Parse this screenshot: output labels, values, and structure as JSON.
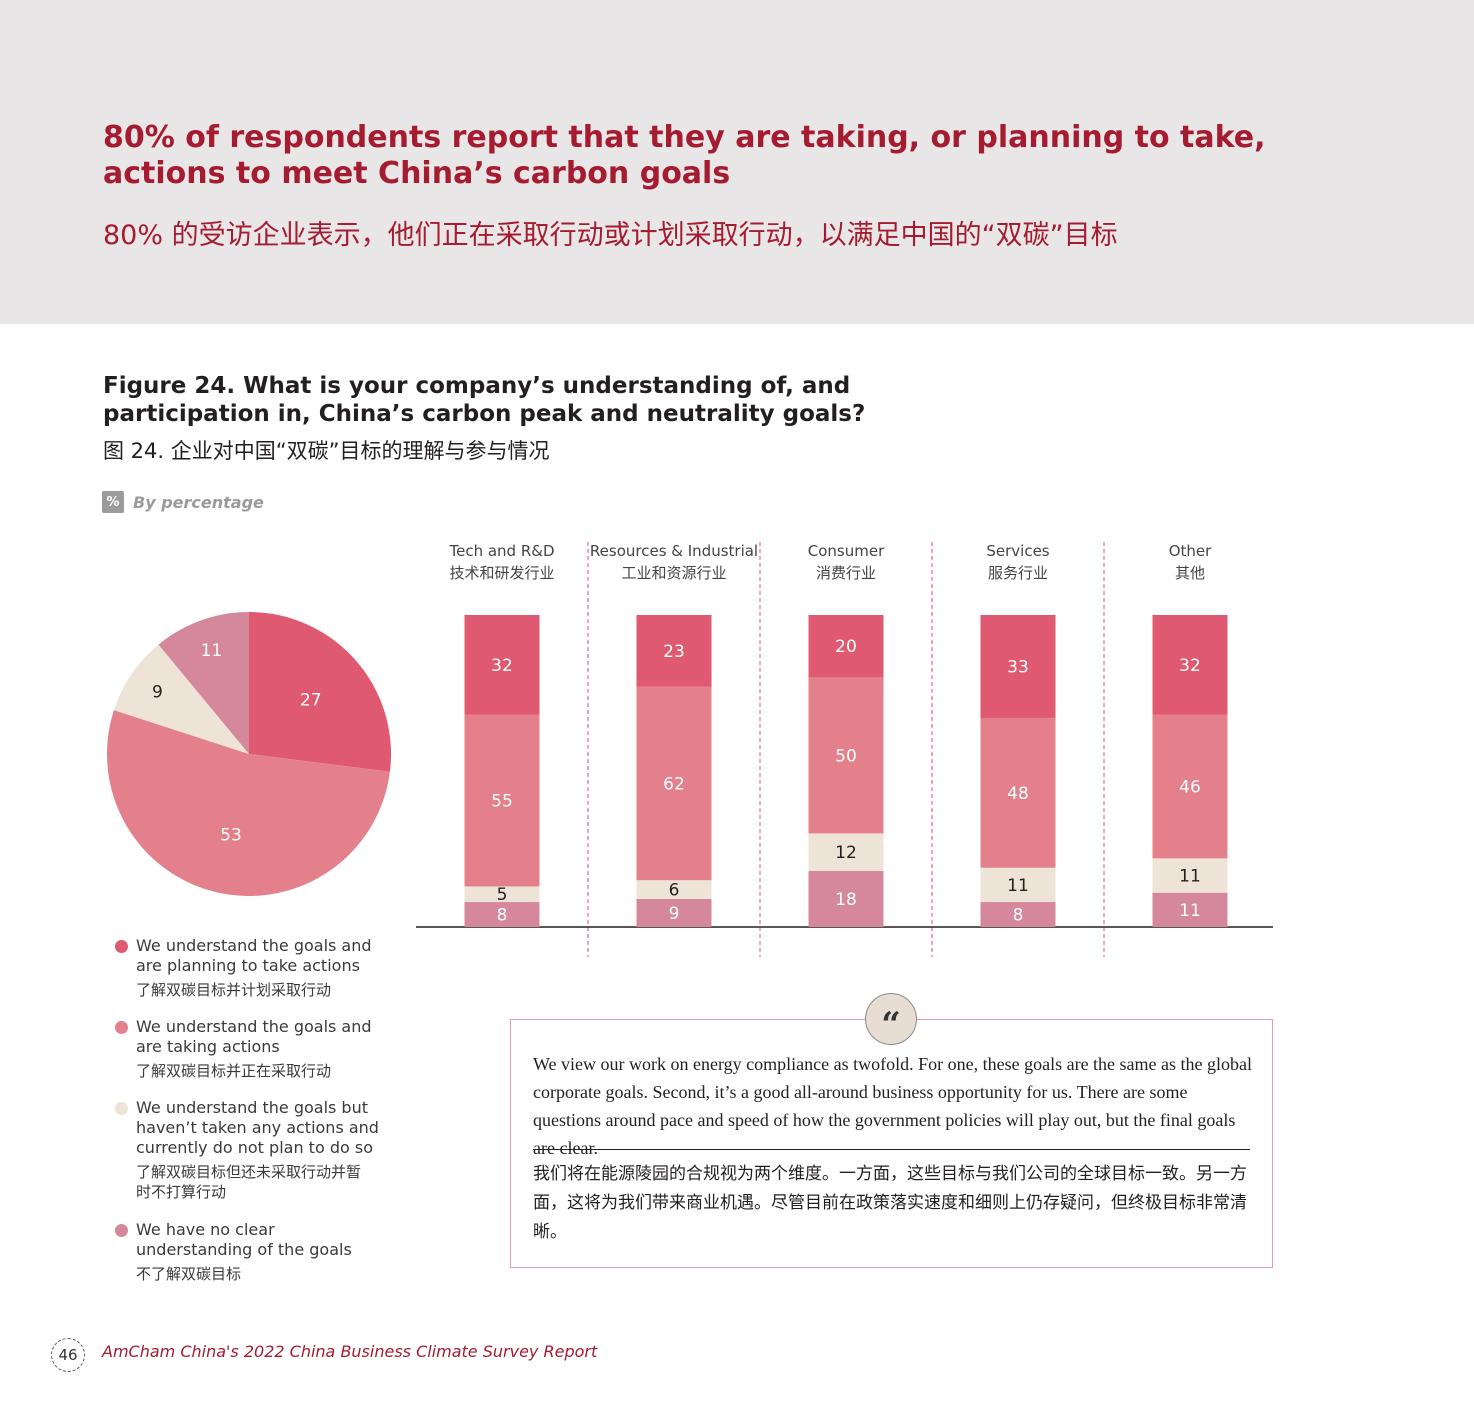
{
  "header": {
    "headline_en": "80% of respondents report that they are taking, or planning to take, actions to meet China’s carbon goals",
    "headline_zh": "80% 的受访企业表示，他们正在采取行动或计划采取行动，以满足中国的“双碳”目标"
  },
  "figure": {
    "title_en": "Figure 24. What is your company’s understanding of, and participation in, China’s carbon peak and neutrality goals?",
    "title_zh": "图 24. 企业对中国“双碳”目标的理解与参与情况",
    "unit_icon": "%",
    "unit_label": "By percentage"
  },
  "colors": {
    "planning": "#df5a70",
    "taking": "#e4808b",
    "no_plan": "#ede3d7",
    "unclear": "#d5889c",
    "label_dark": "#231f20",
    "label_light": "#ffffff",
    "accent": "#a51c30"
  },
  "chart_data": [
    {
      "type": "pie",
      "labels": [
        "We understand the goals and are planning to take actions",
        "We understand the goals and are taking actions",
        "We understand the goals but haven’t taken any actions and currently do not plan to do so",
        "We have no clear understanding of the goals"
      ],
      "values": [
        27,
        53,
        9,
        11
      ]
    },
    {
      "type": "bar",
      "stacked": true,
      "categories": [
        {
          "en": "Tech and R&D",
          "zh": "技术和研发行业"
        },
        {
          "en": "Resources & Industrial",
          "zh": "工业和资源行业"
        },
        {
          "en": "Consumer",
          "zh": "消费行业"
        },
        {
          "en": "Services",
          "zh": "服务行业"
        },
        {
          "en": "Other",
          "zh": "其他"
        }
      ],
      "series": [
        {
          "key": "unclear",
          "values": [
            8,
            9,
            18,
            8,
            11
          ]
        },
        {
          "key": "no_plan",
          "values": [
            5,
            6,
            12,
            11,
            11
          ]
        },
        {
          "key": "taking",
          "values": [
            55,
            62,
            50,
            48,
            46
          ]
        },
        {
          "key": "planning",
          "values": [
            32,
            23,
            20,
            33,
            32
          ]
        }
      ],
      "ylim": [
        0,
        100
      ]
    }
  ],
  "legend": [
    {
      "key": "planning",
      "en": "We understand the goals and are planning to take actions",
      "zh": "了解双碳目标并计划采取行动"
    },
    {
      "key": "taking",
      "en": "We understand the goals and are taking actions",
      "zh": "了解双碳目标并正在采取行动"
    },
    {
      "key": "no_plan",
      "en": "We understand the goals but haven’t taken any actions and currently do not plan to do so",
      "zh": "了解双碳目标但还未采取行动并暂时不打算行动"
    },
    {
      "key": "unclear",
      "en": "We have no clear understanding of the goals",
      "zh": "不了解双碳目标"
    }
  ],
  "quote": {
    "mark": "“",
    "en": "We view our work on energy compliance as twofold. For one, these goals are the same as the global corporate goals. Second, it’s a good all-around business opportunity for us. There are some questions around pace and speed of how the government policies will play out, but the final goals are clear.",
    "zh": "我们将在能源陵园的合规视为两个维度。一方面，这些目标与我们公司的全球目标一致。另一方面，这将为我们带来商业机遇。尽管目前在政策落实速度和细则上仍存疑问，但终极目标非常清晰。"
  },
  "footer": {
    "page_number": "46",
    "report_title": "AmCham China's 2022 China Business Climate Survey Report"
  }
}
